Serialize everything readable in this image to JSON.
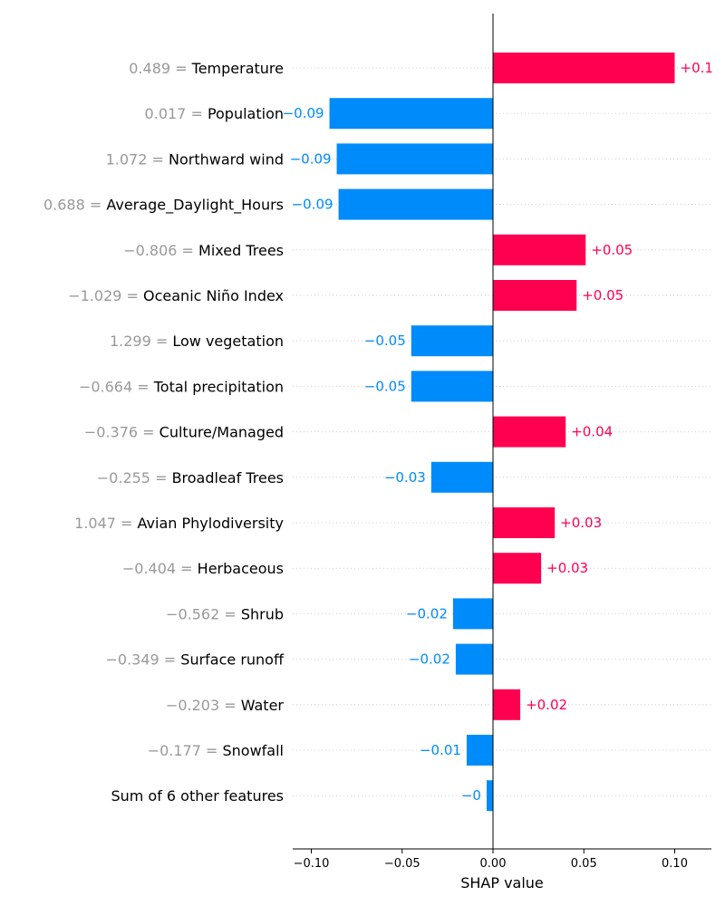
{
  "chart_data": {
    "type": "bar",
    "orientation": "horizontal",
    "xlabel": "SHAP value",
    "xlim": [
      -0.11,
      0.12
    ],
    "x_ticks": [
      -0.1,
      -0.05,
      0.0,
      0.05,
      0.1
    ],
    "x_tick_labels": [
      "−0.10",
      "−0.05",
      "0.00",
      "0.05",
      "0.10"
    ],
    "grid": "horizontal dotted lines per row",
    "colors": {
      "positive": "#ff0051",
      "negative": "#008bfb",
      "feature_value": "#999999",
      "axis": "#000000"
    },
    "features": [
      {
        "value_label": "0.489 =",
        "name": "Temperature",
        "shap": 0.1,
        "label": "+0.1"
      },
      {
        "value_label": "0.017 =",
        "name": "Population",
        "shap": -0.09,
        "label": "−0.09"
      },
      {
        "value_label": "1.072 =",
        "name": "Northward wind",
        "shap": -0.086,
        "label": "−0.09"
      },
      {
        "value_label": "0.688 =",
        "name": "Average_Daylight_Hours",
        "shap": -0.085,
        "label": "−0.09"
      },
      {
        "value_label": "−0.806 =",
        "name": "Mixed Trees",
        "shap": 0.051,
        "label": "+0.05"
      },
      {
        "value_label": "−1.029 =",
        "name": "Oceanic Niño Index",
        "shap": 0.046,
        "label": "+0.05"
      },
      {
        "value_label": "1.299 =",
        "name": "Low vegetation",
        "shap": -0.045,
        "label": "−0.05"
      },
      {
        "value_label": "−0.664 =",
        "name": "Total precipitation",
        "shap": -0.045,
        "label": "−0.05"
      },
      {
        "value_label": "−0.376 =",
        "name": "Culture/Managed",
        "shap": 0.04,
        "label": "+0.04"
      },
      {
        "value_label": "−0.255 =",
        "name": "Broadleaf Trees",
        "shap": -0.034,
        "label": "−0.03"
      },
      {
        "value_label": "1.047 =",
        "name": "Avian Phylodiversity",
        "shap": 0.034,
        "label": "+0.03"
      },
      {
        "value_label": "−0.404 =",
        "name": "Herbaceous",
        "shap": 0.0265,
        "label": "+0.03"
      },
      {
        "value_label": "−0.562 =",
        "name": "Shrub",
        "shap": -0.022,
        "label": "−0.02"
      },
      {
        "value_label": "−0.349 =",
        "name": "Surface runoff",
        "shap": -0.0205,
        "label": "−0.02"
      },
      {
        "value_label": "−0.203 =",
        "name": "Water",
        "shap": 0.015,
        "label": "+0.02"
      },
      {
        "value_label": "−0.177 =",
        "name": "Snowfall",
        "shap": -0.0145,
        "label": "−0.01"
      },
      {
        "value_label": "",
        "name": "Sum of 6 other features",
        "shap": -0.0035,
        "label": "−0"
      }
    ]
  }
}
